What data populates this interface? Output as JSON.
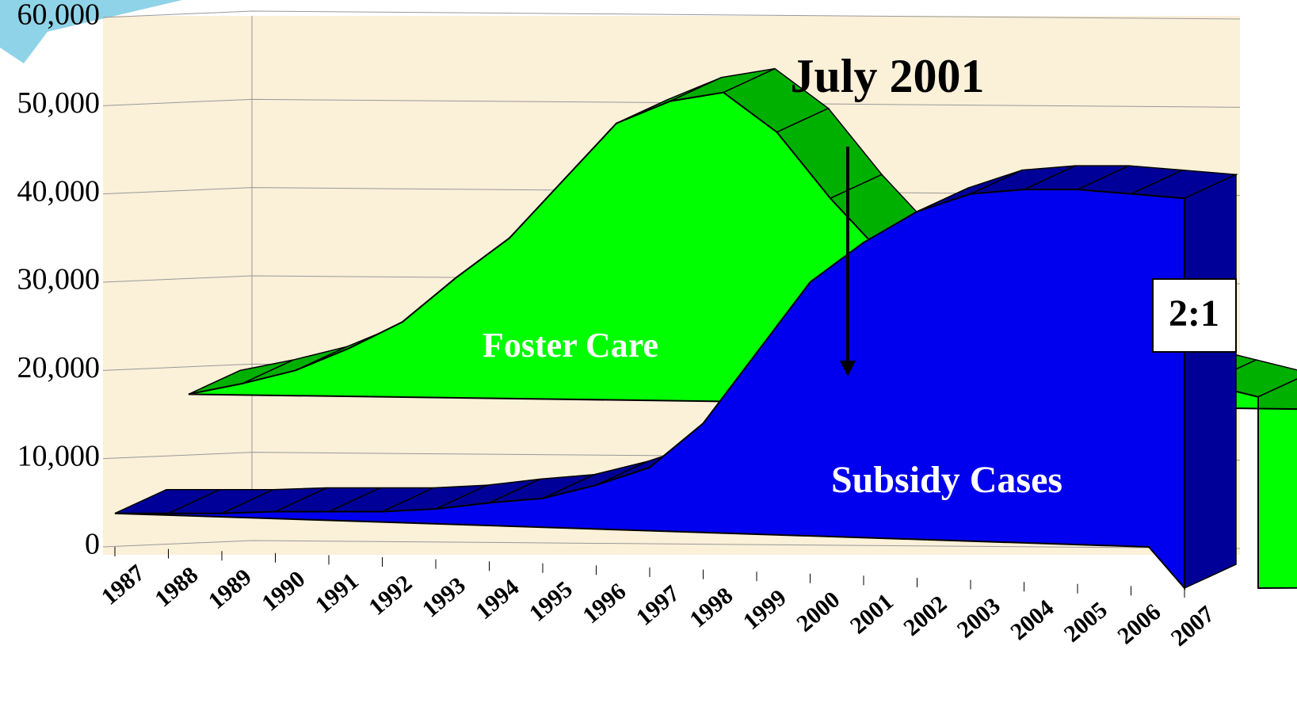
{
  "chart_data": {
    "type": "area3d",
    "categories": [
      "1987",
      "1988",
      "1989",
      "1990",
      "1991",
      "1992",
      "1993",
      "1994",
      "1995",
      "1996",
      "1997",
      "1998",
      "1999",
      "2000",
      "2001",
      "2002",
      "2003",
      "2004",
      "2005",
      "2006",
      "2007"
    ],
    "series": [
      {
        "name": "Foster Care",
        "color": "#00ff00",
        "values": [
          17300,
          18500,
          20000,
          22500,
          25500,
          30500,
          35000,
          41500,
          48000,
          50500,
          51500,
          47000,
          39500,
          33000,
          30000,
          27000,
          24500,
          22000,
          20000,
          18500,
          17000
        ]
      },
      {
        "name": "Subsidy Cases",
        "color": "#0000ee",
        "values": [
          3800,
          3800,
          3800,
          4000,
          4000,
          4000,
          4300,
          5000,
          5500,
          7000,
          9000,
          14000,
          22000,
          30000,
          34500,
          38000,
          40000,
          40500,
          40500,
          40000,
          39500
        ]
      }
    ],
    "ylim": [
      0,
      60000
    ],
    "yticks": [
      0,
      {
        "value": 10000,
        "label": "10,000"
      },
      {
        "value": 20000,
        "label": "20,000"
      },
      {
        "value": 30000,
        "label": "30,000"
      },
      {
        "value": 40000,
        "label": "40,000"
      },
      {
        "value": 50000,
        "label": "50,000"
      },
      {
        "value": 60000,
        "label": "60,000"
      }
    ],
    "grid": true,
    "annotations": [
      "July 2001",
      "2:1"
    ]
  }
}
